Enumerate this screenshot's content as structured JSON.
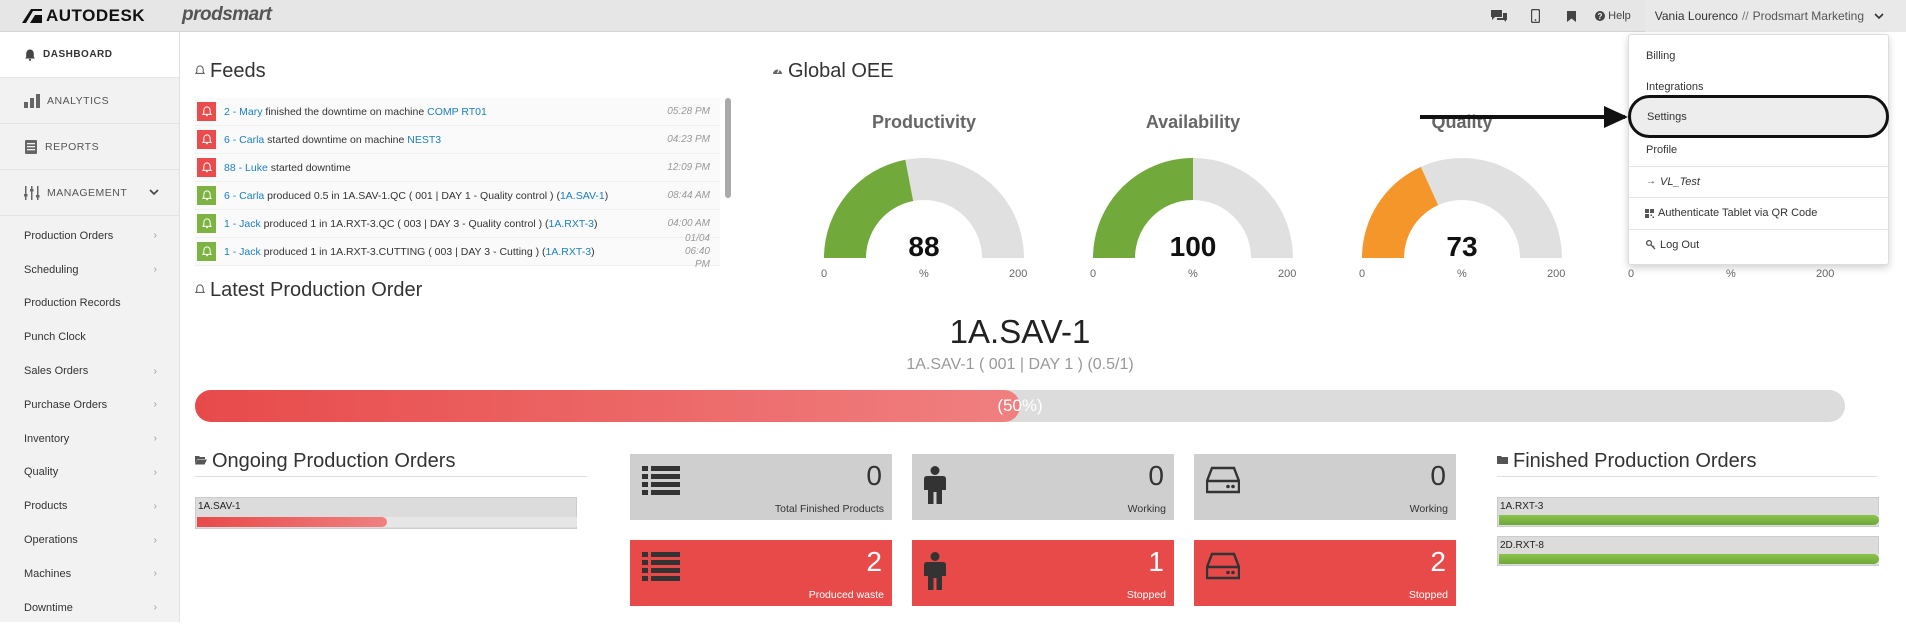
{
  "topbar": {
    "brand": "AUTODESK",
    "product": "prodsmart",
    "help": "Help",
    "user": "Vania Lourenco",
    "separator": "//",
    "company": "Prodsmart Marketing"
  },
  "sidebar": {
    "dashboard": "DASHBOARD",
    "analytics": "ANALYTICS",
    "reports": "REPORTS",
    "management": "MANAGEMENT",
    "items": [
      {
        "label": "Production Orders",
        "arrow": true
      },
      {
        "label": "Scheduling",
        "arrow": true
      },
      {
        "label": "Production Records",
        "arrow": false
      },
      {
        "label": "Punch Clock",
        "arrow": false
      },
      {
        "label": "Sales Orders",
        "arrow": true
      },
      {
        "label": "Purchase Orders",
        "arrow": true
      },
      {
        "label": "Inventory",
        "arrow": true
      },
      {
        "label": "Quality",
        "arrow": true
      },
      {
        "label": "Products",
        "arrow": true
      },
      {
        "label": "Operations",
        "arrow": true
      },
      {
        "label": "Machines",
        "arrow": true
      },
      {
        "label": "Downtime",
        "arrow": true
      }
    ]
  },
  "feeds": {
    "title": "Feeds",
    "rows": [
      {
        "status": "red",
        "pre": "",
        "who": "2 - Mary",
        "mid": " finished the downtime on machine ",
        "link": "COMP RT01",
        "post": "",
        "time": "05:28 PM"
      },
      {
        "status": "red",
        "pre": "",
        "who": "6 - Carla",
        "mid": " started downtime on machine ",
        "link": "NEST3",
        "post": "",
        "time": "04:23 PM"
      },
      {
        "status": "red",
        "pre": "",
        "who": "88 - Luke",
        "mid": " started downtime",
        "link": "",
        "post": "",
        "time": "12:09 PM"
      },
      {
        "status": "green",
        "pre": "",
        "who": "6 - Carla",
        "mid": " produced 0.5 in 1A.SAV-1.QC ( 001 | DAY 1 - Quality control ) (",
        "link": "1A.SAV-1",
        "post": ")",
        "time": "08:44 AM"
      },
      {
        "status": "green",
        "pre": "",
        "who": "1 - Jack",
        "mid": " produced 1 in 1A.RXT-3.QC ( 003 | DAY 3 - Quality control ) (",
        "link": "1A.RXT-3",
        "post": ")",
        "time": "04:00 AM"
      },
      {
        "status": "green",
        "pre": "",
        "who": "1 - Jack",
        "mid": " produced 1 in 1A.RXT-3.CUTTING ( 003 | DAY 3 - Cutting ) (",
        "link": "1A.RXT-3",
        "post": ")",
        "time": "01/04 06:40 PM"
      }
    ]
  },
  "oee": {
    "title": "Global OEE",
    "gauges": [
      {
        "label": "Productivity",
        "value": 88,
        "unit": "%",
        "min": 0,
        "max": 200,
        "color": "#72a93b"
      },
      {
        "label": "Availability",
        "value": 100,
        "unit": "%",
        "min": 0,
        "max": 200,
        "color": "#72a93b"
      },
      {
        "label": "Quality",
        "value": 73,
        "unit": "%",
        "min": 0,
        "max": 200,
        "color": "#f5962a"
      },
      {
        "label": "",
        "value": null,
        "unit": "%",
        "min": 0,
        "max": 200,
        "color": "#72a93b"
      }
    ]
  },
  "latest_order": {
    "title": "Latest Production Order",
    "name": "1A.SAV-1",
    "subtitle": "1A.SAV-1 ( 001 | DAY 1 ) (0.5/1)",
    "progress": 0.5,
    "progress_label": "(50%)"
  },
  "ongoing": {
    "title": "Ongoing Production Orders",
    "items": [
      {
        "label": "1A.SAV-1",
        "progress": 0.5
      }
    ]
  },
  "tiles": [
    {
      "value": "0",
      "label": "Total Finished Products",
      "icon": "list-icon",
      "style": "grey"
    },
    {
      "value": "0",
      "label": "Working",
      "icon": "person-icon",
      "style": "grey"
    },
    {
      "value": "0",
      "label": "Working",
      "icon": "machine-icon",
      "style": "grey"
    },
    {
      "value": "2",
      "label": "Produced waste",
      "icon": "list-icon",
      "style": "red"
    },
    {
      "value": "1",
      "label": "Stopped",
      "icon": "person-icon",
      "style": "red"
    },
    {
      "value": "2",
      "label": "Stopped",
      "icon": "machine-icon",
      "style": "red"
    }
  ],
  "finished": {
    "title": "Finished Production Orders",
    "items": [
      {
        "label": "1A.RXT-3",
        "progress": 1.0
      },
      {
        "label": "2D.RXT-8",
        "progress": 1.0
      }
    ]
  },
  "dropdown": {
    "billing": "Billing",
    "integrations": "Integrations",
    "settings": "Settings",
    "profile": "Profile",
    "vl_test": "VL_Test",
    "tablet": "Authenticate Tablet via QR Code",
    "logout": "Log Out"
  },
  "colors": {
    "red": "#e84a4a",
    "green": "#7cb342",
    "orange": "#f5962a",
    "link": "#1a7fc1"
  }
}
